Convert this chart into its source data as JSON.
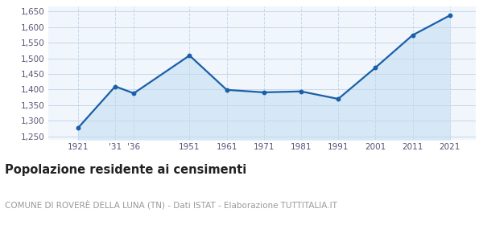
{
  "years": [
    1921,
    1931,
    1936,
    1951,
    1961,
    1971,
    1981,
    1991,
    2001,
    2011,
    2021
  ],
  "x_labels": [
    "1921",
    "'31",
    "'36",
    "1951",
    "1961",
    "1971",
    "1981",
    "1991",
    "2001",
    "2011",
    "2021"
  ],
  "population": [
    1277,
    1410,
    1388,
    1509,
    1399,
    1391,
    1394,
    1370,
    1470,
    1574,
    1637
  ],
  "line_color": "#1a5fa8",
  "fill_color": "#d6e8f5",
  "marker_color": "#1a5fa8",
  "bg_color": "#f0f6fc",
  "grid_color_h": "#c5d8ea",
  "grid_color_v": "#c5d8ea",
  "ylim": [
    1240,
    1665
  ],
  "xlim": [
    1913,
    2028
  ],
  "yticks": [
    1250,
    1300,
    1350,
    1400,
    1450,
    1500,
    1550,
    1600,
    1650
  ],
  "title": "Popolazione residente ai censimenti",
  "subtitle": "COMUNE DI ROVERÈ DELLA LUNA (TN) - Dati ISTAT - Elaborazione TUTTITALIA.IT",
  "title_fontsize": 10.5,
  "subtitle_fontsize": 7.5,
  "title_color": "#222222",
  "subtitle_color": "#999999",
  "axis_tick_color": "#555577",
  "axis_tick_fontsize": 7.5
}
